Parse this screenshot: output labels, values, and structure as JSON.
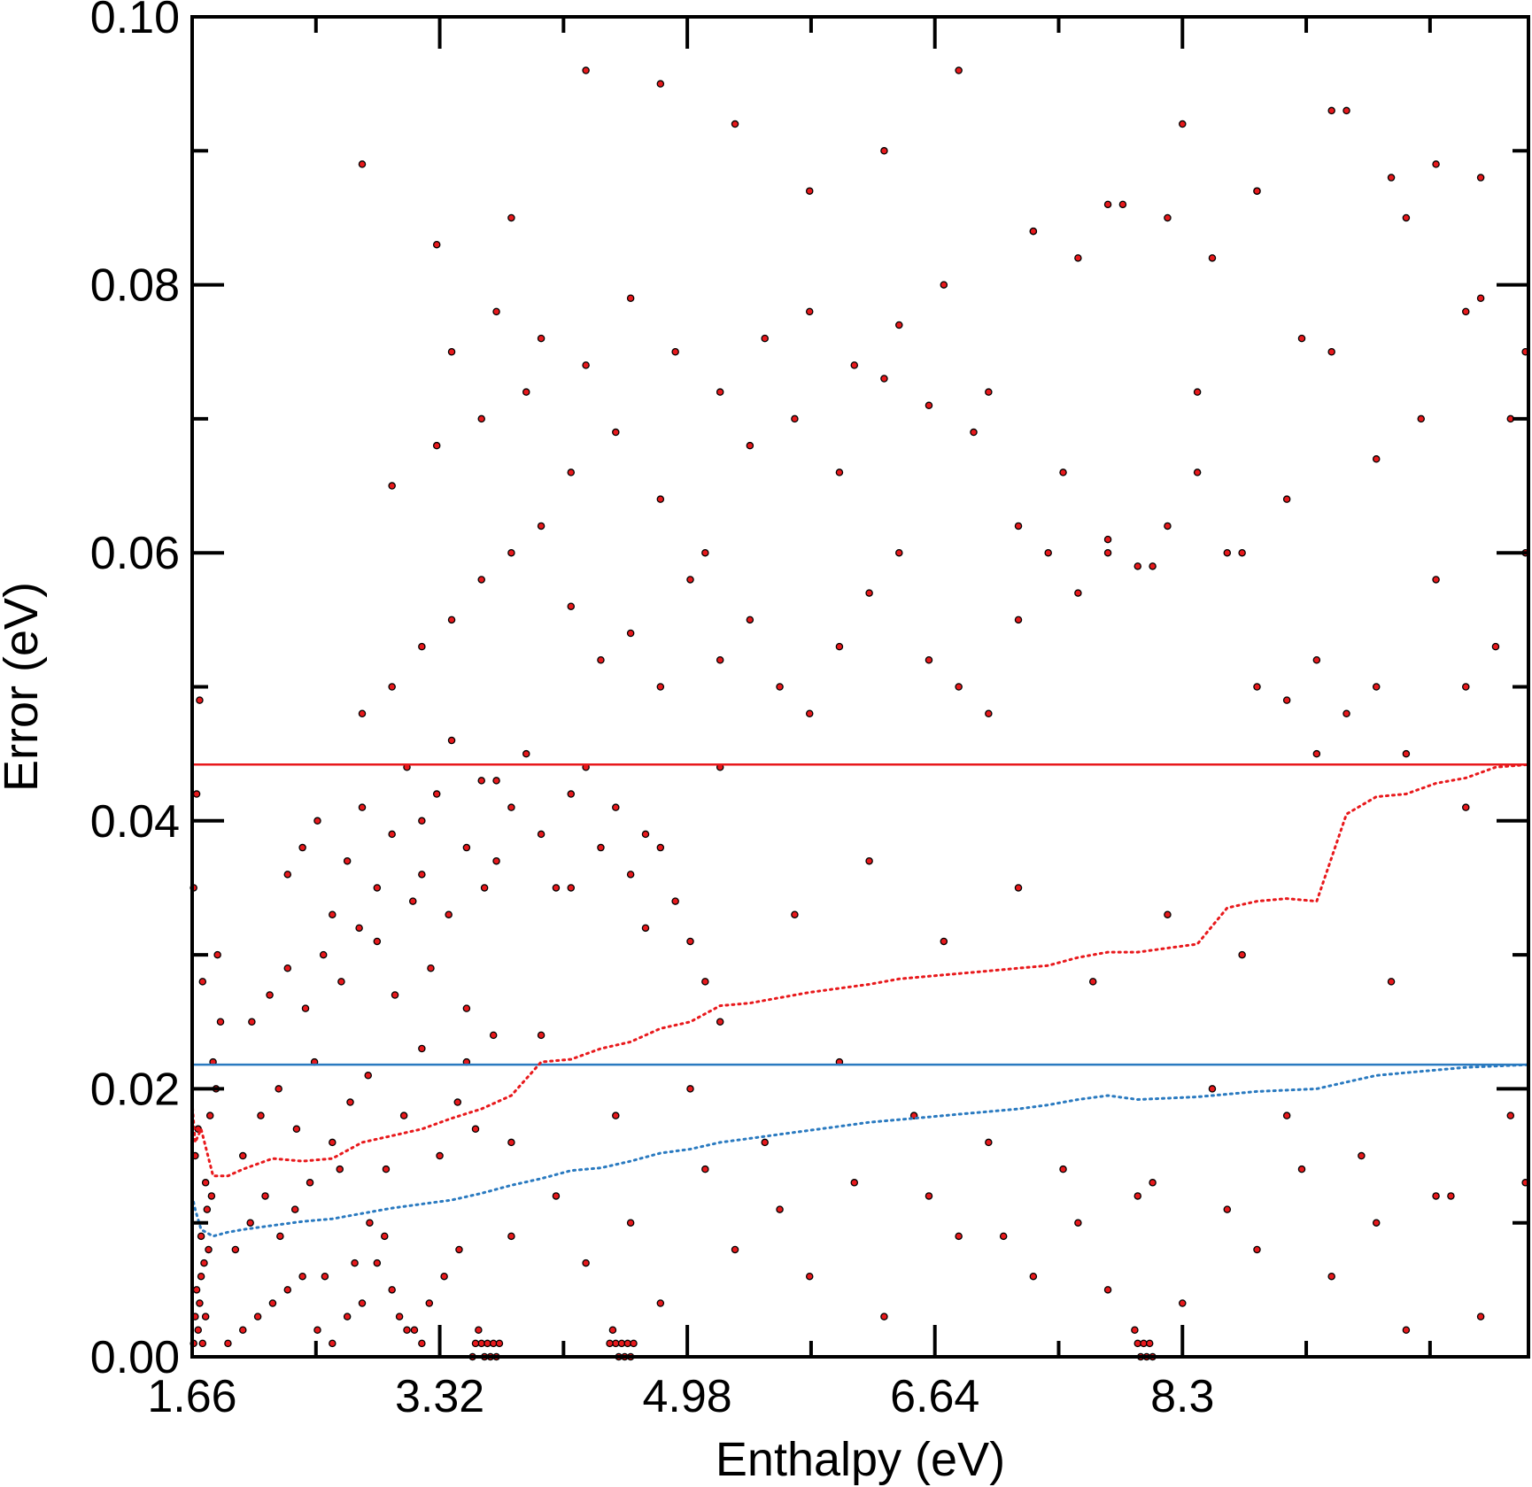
{
  "chart_data": {
    "type": "scatter",
    "xlabel": "Enthalpy (eV)",
    "ylabel": "Error (eV)",
    "xlim": [
      1.66,
      10.62
    ],
    "ylim": [
      0.0,
      0.1
    ],
    "x_ticks": [
      1.66,
      3.32,
      4.98,
      6.64,
      8.3
    ],
    "x_tick_labels": [
      "1.66",
      "3.32",
      "4.98",
      "6.64",
      "8.3"
    ],
    "y_ticks": [
      0.0,
      0.02,
      0.04,
      0.06,
      0.08,
      0.1
    ],
    "y_tick_labels": [
      "0.00",
      "0.02",
      "0.04",
      "0.06",
      "0.08",
      "0.10"
    ],
    "grid": false,
    "marker_color": "#e8191c",
    "marker_edge_color": "#000000",
    "scatter_sample": {
      "x": [
        1.67,
        1.68,
        1.69,
        1.7,
        1.71,
        1.72,
        1.73,
        1.75,
        1.77,
        1.79,
        1.82,
        1.85,
        1.68,
        1.7,
        1.72,
        1.74,
        1.76,
        1.78,
        1.8,
        1.83,
        1.67,
        1.69,
        1.71,
        1.73,
        1.75,
        1.9,
        2.0,
        2.1,
        2.2,
        2.3,
        2.4,
        2.5,
        2.6,
        2.7,
        2.8,
        2.9,
        3.0,
        3.1,
        3.2,
        1.95,
        2.05,
        2.15,
        2.25,
        2.35,
        2.45,
        2.55,
        2.65,
        2.75,
        2.85,
        2.95,
        3.05,
        3.15,
        3.25,
        3.35,
        3.45,
        2.0,
        2.12,
        2.24,
        2.36,
        2.48,
        2.6,
        2.72,
        2.84,
        2.96,
        3.08,
        3.2,
        3.32,
        3.44,
        3.56,
        3.68,
        3.8,
        2.06,
        2.18,
        2.3,
        2.42,
        2.54,
        2.66,
        2.78,
        2.9,
        3.02,
        3.14,
        3.26,
        3.38,
        3.5,
        3.62,
        2.3,
        2.4,
        2.5,
        2.6,
        2.7,
        2.8,
        2.9,
        3.0,
        3.1,
        3.2,
        3.3,
        3.4,
        3.5,
        3.6,
        3.7,
        3.8,
        3.9,
        4.0,
        4.1,
        4.2,
        4.3,
        4.4,
        4.5,
        4.6,
        4.7,
        4.8,
        4.9,
        5.0,
        5.1,
        5.2,
        3.6,
        3.62,
        3.64,
        3.66,
        3.68,
        3.7,
        3.72,
        3.58,
        3.56,
        3.54,
        4.5,
        4.52,
        4.54,
        4.56,
        4.58,
        4.6,
        4.62,
        4.48,
        4.46,
        8.0,
        8.02,
        8.04,
        8.06,
        8.08,
        8.1,
        7.98,
        2.8,
        3.0,
        3.2,
        3.4,
        3.6,
        3.8,
        4.0,
        4.2,
        4.4,
        4.6,
        4.8,
        5.0,
        5.2,
        5.4,
        5.6,
        5.8,
        6.0,
        6.2,
        6.4,
        6.6,
        6.8,
        7.0,
        7.2,
        7.4,
        7.6,
        7.8,
        8.0,
        8.2,
        8.4,
        8.6,
        8.8,
        9.0,
        9.2,
        9.4,
        9.6,
        9.8,
        10.0,
        10.2,
        10.4,
        10.6,
        3.0,
        3.3,
        3.6,
        3.9,
        4.2,
        4.5,
        4.8,
        5.1,
        5.4,
        5.7,
        6.0,
        6.3,
        6.6,
        6.9,
        7.2,
        7.5,
        7.8,
        8.1,
        8.4,
        8.7,
        9.0,
        9.3,
        9.6,
        9.9,
        10.2,
        10.5,
        3.4,
        3.7,
        4.0,
        4.3,
        4.6,
        4.9,
        5.2,
        5.5,
        5.8,
        6.1,
        6.4,
        6.7,
        7.0,
        7.3,
        7.6,
        7.9,
        8.2,
        8.5,
        8.8,
        9.1,
        9.4,
        9.7,
        10.0,
        10.3,
        10.6,
        2.8,
        3.3,
        3.8,
        4.3,
        4.8,
        5.3,
        5.8,
        6.3,
        6.8,
        7.3,
        7.8,
        8.3,
        8.8,
        9.3,
        9.8,
        10.3,
        3.2,
        3.7,
        4.2,
        4.7,
        5.2,
        5.7,
        6.2,
        6.7,
        7.2,
        7.7,
        8.2,
        8.7,
        9.2,
        9.7,
        10.2,
        3.5,
        4.0,
        4.5,
        5.0,
        5.5,
        6.0,
        6.5,
        7.0,
        7.5,
        8.0,
        8.5,
        9.0,
        9.5,
        10.0,
        10.5,
        3.8,
        4.3,
        4.8,
        5.3,
        5.8,
        6.3,
        6.8,
        7.3,
        7.8,
        8.3,
        8.8,
        9.3,
        9.8,
        10.3,
        4.1,
        4.6,
        5.1,
        5.6,
        6.1,
        6.6,
        7.1,
        7.6,
        8.1,
        8.6,
        9.1,
        9.6,
        10.1,
        10.6
      ],
      "y": [
        0.001,
        0.003,
        0.005,
        0.002,
        0.004,
        0.006,
        0.001,
        0.003,
        0.008,
        0.012,
        0.02,
        0.025,
        0.015,
        0.017,
        0.009,
        0.007,
        0.011,
        0.018,
        0.022,
        0.03,
        0.035,
        0.042,
        0.049,
        0.028,
        0.013,
        0.001,
        0.002,
        0.003,
        0.004,
        0.005,
        0.006,
        0.002,
        0.001,
        0.003,
        0.004,
        0.007,
        0.005,
        0.002,
        0.001,
        0.008,
        0.01,
        0.012,
        0.009,
        0.011,
        0.013,
        0.006,
        0.014,
        0.007,
        0.01,
        0.009,
        0.003,
        0.002,
        0.004,
        0.006,
        0.008,
        0.015,
        0.018,
        0.02,
        0.017,
        0.022,
        0.016,
        0.019,
        0.021,
        0.014,
        0.018,
        0.023,
        0.015,
        0.019,
        0.017,
        0.024,
        0.016,
        0.025,
        0.027,
        0.029,
        0.026,
        0.03,
        0.028,
        0.032,
        0.031,
        0.027,
        0.034,
        0.029,
        0.033,
        0.026,
        0.035,
        0.036,
        0.038,
        0.04,
        0.033,
        0.037,
        0.041,
        0.035,
        0.039,
        0.044,
        0.036,
        0.042,
        0.046,
        0.038,
        0.043,
        0.037,
        0.041,
        0.045,
        0.039,
        0.035,
        0.042,
        0.044,
        0.038,
        0.041,
        0.036,
        0.032,
        0.038,
        0.034,
        0.031,
        0.028,
        0.025,
        0.001,
        0.0,
        0.001,
        0.0,
        0.001,
        0.0,
        0.001,
        0.002,
        0.001,
        0.0,
        0.001,
        0.0,
        0.001,
        0.0,
        0.001,
        0.0,
        0.001,
        0.002,
        0.001,
        0.001,
        0.0,
        0.001,
        0.0,
        0.001,
        0.0,
        0.002,
        0.048,
        0.05,
        0.053,
        0.055,
        0.058,
        0.06,
        0.062,
        0.056,
        0.052,
        0.054,
        0.05,
        0.058,
        0.052,
        0.055,
        0.05,
        0.048,
        0.053,
        0.057,
        0.06,
        0.052,
        0.05,
        0.048,
        0.055,
        0.06,
        0.057,
        0.06,
        0.059,
        0.062,
        0.066,
        0.06,
        0.05,
        0.049,
        0.052,
        0.048,
        0.05,
        0.045,
        0.058,
        0.05,
        0.053,
        0.06,
        0.065,
        0.068,
        0.07,
        0.072,
        0.066,
        0.069,
        0.064,
        0.06,
        0.068,
        0.07,
        0.066,
        0.073,
        0.071,
        0.069,
        0.062,
        0.066,
        0.061,
        0.059,
        0.072,
        0.06,
        0.064,
        0.075,
        0.067,
        0.07,
        0.078,
        0.07,
        0.075,
        0.078,
        0.076,
        0.074,
        0.079,
        0.075,
        0.072,
        0.076,
        0.078,
        0.074,
        0.077,
        0.08,
        0.072,
        0.084,
        0.082,
        0.086,
        0.085,
        0.082,
        0.087,
        0.076,
        0.093,
        0.088,
        0.089,
        0.079,
        0.075,
        0.089,
        0.083,
        0.085,
        0.096,
        0.095,
        0.092,
        0.087,
        0.09,
        0.096,
        0.084,
        0.086,
        0.092,
        0.087,
        0.093,
        0.085,
        0.088,
        0.04,
        0.043,
        0.035,
        0.039,
        0.044,
        0.033,
        0.037,
        0.031,
        0.035,
        0.028,
        0.033,
        0.03,
        0.045,
        0.028,
        0.041,
        0.022,
        0.024,
        0.018,
        0.02,
        0.016,
        0.022,
        0.018,
        0.016,
        0.014,
        0.012,
        0.02,
        0.018,
        0.015,
        0.012,
        0.018,
        0.009,
        0.007,
        0.004,
        0.008,
        0.006,
        0.003,
        0.009,
        0.006,
        0.005,
        0.004,
        0.008,
        0.006,
        0.002,
        0.003,
        0.012,
        0.01,
        0.014,
        0.011,
        0.013,
        0.012,
        0.009,
        0.01,
        0.013,
        0.011,
        0.014,
        0.01,
        0.012,
        0.013
      ]
    },
    "series": [
      {
        "kind": "hline",
        "color": "#e8191c",
        "y": 0.0442
      },
      {
        "kind": "hline",
        "color": "#2a7ac0",
        "y": 0.0218
      },
      {
        "kind": "dotted",
        "color": "#e8191c",
        "x": [
          1.66,
          1.68,
          1.72,
          1.8,
          1.9,
          2.0,
          2.2,
          2.4,
          2.6,
          2.8,
          3.0,
          3.2,
          3.4,
          3.6,
          3.8,
          4.0,
          4.2,
          4.4,
          4.6,
          4.8,
          5.0,
          5.2,
          5.4,
          5.6,
          5.8,
          6.0,
          6.2,
          6.4,
          6.6,
          6.8,
          7.0,
          7.2,
          7.4,
          7.6,
          7.8,
          8.0,
          8.2,
          8.4,
          8.6,
          8.8,
          9.0,
          9.2,
          9.4,
          9.6,
          9.8,
          10.0,
          10.2,
          10.4,
          10.62
        ],
        "y": [
          0.019,
          0.016,
          0.017,
          0.0135,
          0.0135,
          0.014,
          0.0148,
          0.0146,
          0.0148,
          0.016,
          0.0165,
          0.017,
          0.0178,
          0.0185,
          0.0195,
          0.022,
          0.0222,
          0.023,
          0.0235,
          0.0245,
          0.025,
          0.0262,
          0.0264,
          0.0268,
          0.0272,
          0.0275,
          0.0278,
          0.0282,
          0.0284,
          0.0286,
          0.0288,
          0.029,
          0.0292,
          0.0298,
          0.0302,
          0.0302,
          0.0305,
          0.0308,
          0.0335,
          0.034,
          0.0342,
          0.034,
          0.0405,
          0.0418,
          0.042,
          0.0428,
          0.0432,
          0.044,
          0.0442
        ]
      },
      {
        "kind": "dotted",
        "color": "#2a7ac0",
        "x": [
          1.66,
          1.68,
          1.72,
          1.8,
          1.9,
          2.0,
          2.2,
          2.4,
          2.6,
          2.8,
          3.0,
          3.2,
          3.4,
          3.6,
          3.8,
          4.0,
          4.2,
          4.4,
          4.6,
          4.8,
          5.0,
          5.2,
          5.4,
          5.6,
          5.8,
          6.0,
          6.2,
          6.4,
          6.6,
          6.8,
          7.0,
          7.2,
          7.4,
          7.6,
          7.8,
          8.0,
          8.2,
          8.4,
          8.6,
          8.8,
          9.0,
          9.2,
          9.4,
          9.6,
          9.8,
          10.0,
          10.2,
          10.4,
          10.62
        ],
        "y": [
          0.012,
          0.011,
          0.0095,
          0.009,
          0.0093,
          0.0095,
          0.0098,
          0.0101,
          0.0103,
          0.0107,
          0.0111,
          0.0114,
          0.0117,
          0.0122,
          0.0128,
          0.0133,
          0.0139,
          0.0141,
          0.0146,
          0.0152,
          0.0155,
          0.016,
          0.0163,
          0.0166,
          0.0169,
          0.0172,
          0.0175,
          0.0177,
          0.0179,
          0.0181,
          0.0183,
          0.0185,
          0.0188,
          0.0192,
          0.0195,
          0.0192,
          0.0193,
          0.0194,
          0.0196,
          0.0198,
          0.0199,
          0.02,
          0.0205,
          0.021,
          0.0212,
          0.0214,
          0.0216,
          0.0217,
          0.0218
        ]
      }
    ]
  }
}
